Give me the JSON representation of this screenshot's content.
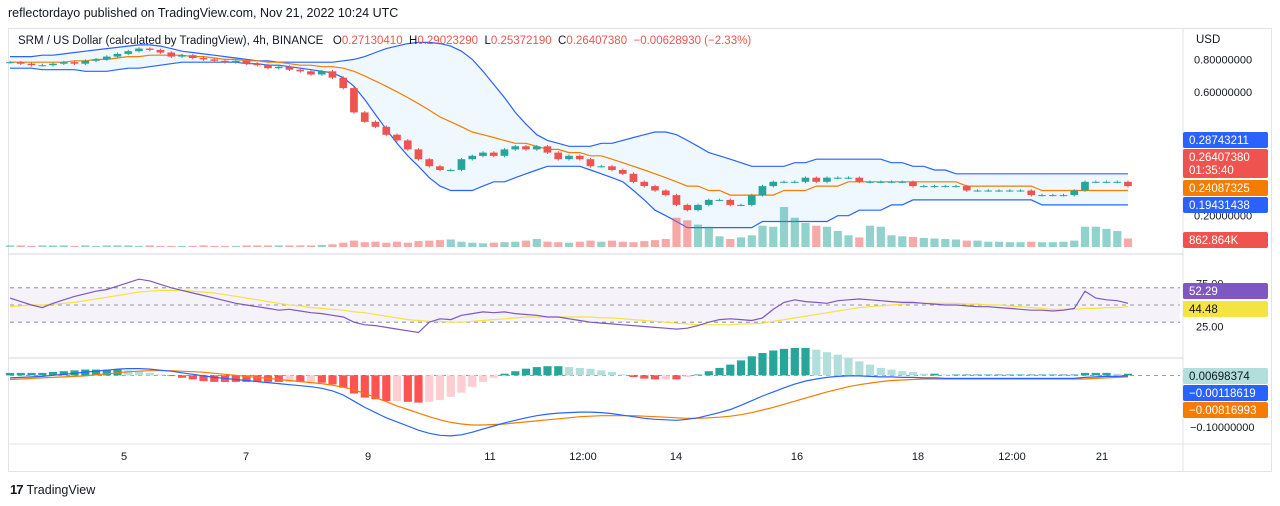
{
  "caption": "reflectordayo published on TradingView.com, Nov 21, 2022 10:24 UTC",
  "legend": {
    "symbol": "SRM / US Dollar (calculated by TradingView), 4h, BINANCE",
    "open_label": "O",
    "open": "0.27130410",
    "high_label": "H",
    "high": "0.29023290",
    "low_label": "L",
    "low": "0.25372190",
    "close_label": "C",
    "close": "0.26407380",
    "change": "−0.00628930 (−2.33%)"
  },
  "currency": "USD",
  "footer": {
    "brand": "TradingView"
  },
  "colors": {
    "up": "#26a69a",
    "down": "#ef5350",
    "bb_band": "#2962ff",
    "bb_basis": "#f57c00",
    "rsi": "#7e57c2",
    "rsi_ma": "#f5e342",
    "macd": "#2962ff",
    "signal": "#f57c00"
  },
  "chart_data": [
    {
      "type": "candlestick",
      "pane": "price",
      "x_ticks": [
        "5",
        "7",
        "9",
        "11",
        "12:00",
        "14",
        "16",
        "18",
        "12:00",
        "21"
      ],
      "y_ticks": [
        "0.80000000",
        "0.60000000",
        "0.20000000"
      ],
      "y_scale": "log",
      "ylim": [
        0.17,
        0.95
      ],
      "price_labels": [
        {
          "text": "0.28743211",
          "color": "#2962ff"
        },
        {
          "text": "0.26407380",
          "color": "#ef5350"
        },
        {
          "text": "01:35:40",
          "color": "#ef5350"
        },
        {
          "text": "0.24087325",
          "color": "#f57c00"
        },
        {
          "text": "0.19431438",
          "color": "#2962ff"
        },
        {
          "text": "862.864K",
          "color": "#ef5350"
        }
      ],
      "close_path": [
        0.78,
        0.77,
        0.76,
        0.76,
        0.77,
        0.78,
        0.77,
        0.79,
        0.8,
        0.82,
        0.84,
        0.86,
        0.88,
        0.87,
        0.85,
        0.82,
        0.83,
        0.81,
        0.8,
        0.79,
        0.78,
        0.79,
        0.77,
        0.76,
        0.74,
        0.75,
        0.73,
        0.72,
        0.7,
        0.72,
        0.68,
        0.62,
        0.5,
        0.46,
        0.44,
        0.41,
        0.39,
        0.36,
        0.33,
        0.31,
        0.3,
        0.3,
        0.33,
        0.34,
        0.35,
        0.34,
        0.36,
        0.37,
        0.36,
        0.37,
        0.35,
        0.33,
        0.34,
        0.33,
        0.31,
        0.31,
        0.3,
        0.29,
        0.27,
        0.26,
        0.25,
        0.24,
        0.22,
        0.21,
        0.22,
        0.23,
        0.23,
        0.22,
        0.22,
        0.24,
        0.26,
        0.27,
        0.27,
        0.27,
        0.28,
        0.27,
        0.28,
        0.28,
        0.28,
        0.27,
        0.27,
        0.27,
        0.27,
        0.27,
        0.26,
        0.26,
        0.26,
        0.26,
        0.26,
        0.25,
        0.25,
        0.25,
        0.25,
        0.25,
        0.25,
        0.24,
        0.24,
        0.24,
        0.24,
        0.25,
        0.27,
        0.27,
        0.27,
        0.27,
        0.26
      ],
      "volume": [
        3,
        3,
        2,
        3,
        3,
        3,
        2,
        3,
        2,
        3,
        3,
        3,
        2,
        3,
        2,
        2,
        2,
        2,
        3,
        2,
        2,
        2,
        3,
        3,
        3,
        3,
        3,
        3,
        3,
        4,
        5,
        8,
        12,
        9,
        10,
        8,
        10,
        8,
        11,
        12,
        13,
        14,
        10,
        8,
        7,
        8,
        9,
        10,
        12,
        15,
        10,
        9,
        8,
        10,
        12,
        10,
        12,
        10,
        9,
        11,
        13,
        15,
        55,
        50,
        42,
        38,
        20,
        15,
        18,
        22,
        40,
        38,
        75,
        55,
        45,
        40,
        38,
        30,
        22,
        18,
        40,
        38,
        22,
        20,
        19,
        17,
        16,
        15,
        14,
        12,
        12,
        10,
        10,
        9,
        9,
        10,
        9,
        9,
        10,
        12,
        38,
        38,
        34,
        30,
        16
      ],
      "bb_upper": [
        0.82,
        0.82,
        0.82,
        0.83,
        0.83,
        0.84,
        0.85,
        0.86,
        0.87,
        0.88,
        0.89,
        0.9,
        0.91,
        0.91,
        0.9,
        0.88,
        0.86,
        0.85,
        0.84,
        0.83,
        0.82,
        0.81,
        0.8,
        0.79,
        0.79,
        0.78,
        0.78,
        0.78,
        0.78,
        0.78,
        0.78,
        0.79,
        0.8,
        0.82,
        0.85,
        0.88,
        0.9,
        0.92,
        0.93,
        0.93,
        0.92,
        0.9,
        0.86,
        0.8,
        0.72,
        0.64,
        0.57,
        0.5,
        0.45,
        0.41,
        0.39,
        0.38,
        0.37,
        0.37,
        0.37,
        0.38,
        0.38,
        0.39,
        0.4,
        0.41,
        0.42,
        0.42,
        0.41,
        0.39,
        0.37,
        0.35,
        0.34,
        0.33,
        0.32,
        0.31,
        0.31,
        0.31,
        0.31,
        0.32,
        0.32,
        0.33,
        0.33,
        0.33,
        0.33,
        0.33,
        0.33,
        0.33,
        0.32,
        0.32,
        0.31,
        0.31,
        0.3,
        0.3,
        0.29,
        0.29,
        0.29,
        0.29,
        0.29,
        0.29,
        0.29,
        0.29,
        0.29,
        0.29,
        0.29,
        0.29,
        0.29,
        0.29,
        0.29,
        0.29,
        0.29
      ],
      "bb_basis": [
        0.78,
        0.78,
        0.78,
        0.78,
        0.78,
        0.78,
        0.79,
        0.79,
        0.8,
        0.8,
        0.81,
        0.82,
        0.82,
        0.83,
        0.83,
        0.83,
        0.83,
        0.82,
        0.82,
        0.81,
        0.8,
        0.8,
        0.79,
        0.79,
        0.78,
        0.78,
        0.77,
        0.76,
        0.76,
        0.75,
        0.75,
        0.74,
        0.72,
        0.69,
        0.66,
        0.63,
        0.6,
        0.57,
        0.54,
        0.51,
        0.48,
        0.46,
        0.44,
        0.42,
        0.41,
        0.4,
        0.39,
        0.38,
        0.38,
        0.37,
        0.36,
        0.36,
        0.35,
        0.35,
        0.34,
        0.34,
        0.33,
        0.32,
        0.31,
        0.3,
        0.29,
        0.28,
        0.27,
        0.26,
        0.26,
        0.25,
        0.25,
        0.24,
        0.24,
        0.24,
        0.24,
        0.24,
        0.25,
        0.25,
        0.25,
        0.26,
        0.26,
        0.26,
        0.27,
        0.27,
        0.27,
        0.27,
        0.27,
        0.27,
        0.27,
        0.27,
        0.27,
        0.27,
        0.27,
        0.26,
        0.26,
        0.26,
        0.26,
        0.26,
        0.26,
        0.26,
        0.25,
        0.25,
        0.25,
        0.25,
        0.25,
        0.25,
        0.25,
        0.25,
        0.25
      ],
      "bb_lower": [
        0.74,
        0.74,
        0.74,
        0.73,
        0.73,
        0.73,
        0.73,
        0.72,
        0.72,
        0.72,
        0.73,
        0.74,
        0.74,
        0.75,
        0.76,
        0.77,
        0.78,
        0.78,
        0.78,
        0.78,
        0.78,
        0.78,
        0.77,
        0.77,
        0.76,
        0.76,
        0.75,
        0.74,
        0.73,
        0.72,
        0.71,
        0.68,
        0.63,
        0.56,
        0.49,
        0.43,
        0.38,
        0.34,
        0.31,
        0.28,
        0.26,
        0.25,
        0.25,
        0.25,
        0.26,
        0.27,
        0.27,
        0.28,
        0.29,
        0.3,
        0.31,
        0.31,
        0.31,
        0.31,
        0.3,
        0.29,
        0.28,
        0.27,
        0.25,
        0.23,
        0.21,
        0.2,
        0.19,
        0.18,
        0.18,
        0.18,
        0.18,
        0.18,
        0.18,
        0.18,
        0.19,
        0.19,
        0.19,
        0.19,
        0.19,
        0.19,
        0.19,
        0.2,
        0.2,
        0.21,
        0.21,
        0.21,
        0.22,
        0.22,
        0.23,
        0.23,
        0.23,
        0.23,
        0.23,
        0.23,
        0.23,
        0.23,
        0.23,
        0.23,
        0.23,
        0.23,
        0.22,
        0.22,
        0.22,
        0.22,
        0.22,
        0.22,
        0.22,
        0.22,
        0.22
      ]
    },
    {
      "type": "line",
      "pane": "rsi",
      "y_ticks": [
        "75.00",
        "25.00"
      ],
      "ylim": [
        0,
        100
      ],
      "bands": [
        70,
        50,
        30
      ],
      "value_labels": [
        {
          "text": "52.29",
          "color": "#7e57c2"
        },
        {
          "text": "44.48",
          "color": "#f5e342"
        }
      ],
      "series": [
        {
          "values": [
            58,
            54,
            50,
            47,
            52,
            56,
            60,
            63,
            66,
            68,
            72,
            76,
            80,
            78,
            74,
            70,
            67,
            64,
            61,
            58,
            55,
            52,
            50,
            48,
            46,
            44,
            45,
            43,
            41,
            40,
            38,
            36,
            30,
            27,
            26,
            24,
            22,
            20,
            18,
            30,
            34,
            33,
            38,
            40,
            42,
            41,
            42,
            40,
            39,
            38,
            36,
            36,
            34,
            32,
            30,
            29,
            28,
            27,
            26,
            25,
            24,
            23,
            22,
            23,
            26,
            30,
            33,
            34,
            33,
            32,
            35,
            45,
            53,
            56,
            54,
            53,
            52,
            55,
            56,
            57,
            56,
            55,
            54,
            53,
            53,
            52,
            51,
            50,
            50,
            49,
            48,
            48,
            47,
            46,
            45,
            44,
            44,
            43,
            44,
            46,
            66,
            58,
            56,
            55,
            52
          ]
        },
        {
          "values": [
            48,
            49,
            50,
            50,
            51,
            52,
            53,
            55,
            57,
            59,
            61,
            63,
            65,
            66,
            67,
            67,
            67,
            66,
            65,
            64,
            62,
            60,
            58,
            56,
            54,
            52,
            50,
            49,
            47,
            46,
            45,
            44,
            42,
            41,
            39,
            37,
            35,
            33,
            32,
            31,
            31,
            30,
            30,
            31,
            32,
            33,
            34,
            35,
            36,
            36,
            36,
            36,
            36,
            36,
            36,
            35,
            35,
            34,
            33,
            32,
            31,
            30,
            29,
            28,
            27,
            27,
            27,
            27,
            28,
            28,
            29,
            31,
            33,
            35,
            37,
            39,
            41,
            43,
            45,
            47,
            48,
            49,
            50,
            51,
            52,
            52,
            52,
            52,
            52,
            51,
            51,
            50,
            50,
            49,
            48,
            47,
            46,
            45,
            45,
            45,
            46,
            46,
            47,
            47,
            48
          ]
        }
      ]
    },
    {
      "type": "line",
      "pane": "macd",
      "y_ticks": [
        "−0.10000000"
      ],
      "value_labels": [
        {
          "text": "0.00698374",
          "color": "#26a69a"
        },
        {
          "text": "−0.00118619",
          "color": "#2962ff"
        },
        {
          "text": "−0.00816993",
          "color": "#f57c00"
        }
      ],
      "series": [
        {
          "values": [
            -0.005,
            -0.004,
            -0.003,
            -0.002,
            0.0,
            0.002,
            0.004,
            0.006,
            0.008,
            0.01,
            0.012,
            0.013,
            0.013,
            0.012,
            0.01,
            0.008,
            0.005,
            0.002,
            -0.001,
            -0.004,
            -0.006,
            -0.008,
            -0.01,
            -0.012,
            -0.014,
            -0.016,
            -0.018,
            -0.02,
            -0.022,
            -0.025,
            -0.03,
            -0.038,
            -0.05,
            -0.062,
            -0.072,
            -0.082,
            -0.09,
            -0.098,
            -0.106,
            -0.112,
            -0.116,
            -0.117,
            -0.115,
            -0.11,
            -0.104,
            -0.098,
            -0.092,
            -0.087,
            -0.082,
            -0.078,
            -0.075,
            -0.073,
            -0.072,
            -0.071,
            -0.071,
            -0.072,
            -0.074,
            -0.077,
            -0.08,
            -0.083,
            -0.085,
            -0.086,
            -0.087,
            -0.085,
            -0.082,
            -0.077,
            -0.072,
            -0.066,
            -0.058,
            -0.049,
            -0.04,
            -0.032,
            -0.024,
            -0.017,
            -0.011,
            -0.007,
            -0.004,
            -0.002,
            -0.001,
            -0.001,
            -0.002,
            -0.003,
            -0.003,
            -0.004,
            -0.004,
            -0.005,
            -0.005,
            -0.006,
            -0.006,
            -0.006,
            -0.006,
            -0.006,
            -0.006,
            -0.006,
            -0.006,
            -0.006,
            -0.006,
            -0.006,
            -0.006,
            -0.006,
            -0.004,
            -0.003,
            -0.002,
            -0.002,
            -0.001
          ]
        },
        {
          "values": [
            -0.008,
            -0.007,
            -0.006,
            -0.005,
            -0.004,
            -0.003,
            -0.002,
            -0.001,
            0.001,
            0.003,
            0.005,
            0.007,
            0.008,
            0.009,
            0.009,
            0.009,
            0.008,
            0.007,
            0.006,
            0.004,
            0.002,
            0.0,
            -0.002,
            -0.004,
            -0.006,
            -0.008,
            -0.01,
            -0.012,
            -0.014,
            -0.016,
            -0.019,
            -0.023,
            -0.028,
            -0.035,
            -0.043,
            -0.051,
            -0.059,
            -0.066,
            -0.073,
            -0.08,
            -0.086,
            -0.091,
            -0.094,
            -0.096,
            -0.096,
            -0.095,
            -0.094,
            -0.092,
            -0.09,
            -0.088,
            -0.086,
            -0.084,
            -0.082,
            -0.08,
            -0.079,
            -0.078,
            -0.078,
            -0.078,
            -0.078,
            -0.079,
            -0.08,
            -0.081,
            -0.082,
            -0.083,
            -0.083,
            -0.082,
            -0.081,
            -0.079,
            -0.076,
            -0.072,
            -0.067,
            -0.062,
            -0.056,
            -0.05,
            -0.044,
            -0.038,
            -0.032,
            -0.027,
            -0.022,
            -0.018,
            -0.015,
            -0.012,
            -0.01,
            -0.009,
            -0.008,
            -0.007,
            -0.007,
            -0.007,
            -0.007,
            -0.007,
            -0.007,
            -0.007,
            -0.007,
            -0.007,
            -0.007,
            -0.007,
            -0.007,
            -0.007,
            -0.007,
            -0.007,
            -0.007,
            -0.006,
            -0.005,
            -0.004,
            -0.003
          ]
        }
      ]
    }
  ]
}
